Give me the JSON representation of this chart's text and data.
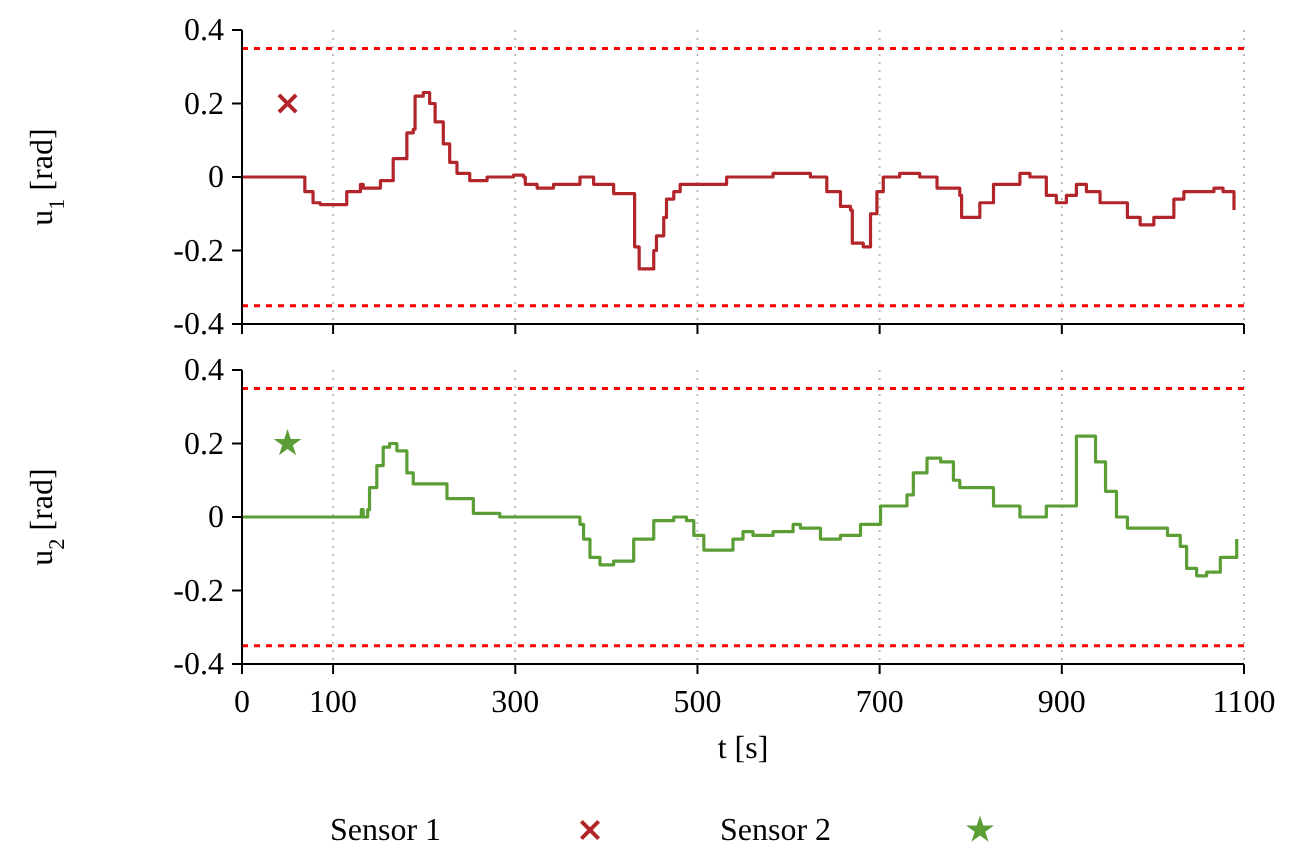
{
  "chart_data": [
    {
      "type": "step",
      "ylabel": "u$_{1}$ [rad]",
      "xlim": [
        0,
        1100
      ],
      "xticks": [
        0,
        100,
        300,
        500,
        700,
        900,
        1100
      ],
      "ylim": [
        -0.4,
        0.4
      ],
      "yticks": [
        -0.4,
        -0.2,
        0,
        0.2,
        0.4
      ],
      "grid": "x",
      "tick_labels": "y",
      "legend": "bottom",
      "ref_lines": [
        {
          "axis": "y",
          "value": 0.35,
          "color": "#ff0000",
          "line_style": "dashed"
        },
        {
          "axis": "y",
          "value": -0.35,
          "color": "#ff0000",
          "line_style": "dashed"
        }
      ],
      "series": [
        {
          "color": "#b2252a",
          "line_style": "solid",
          "x": [
            0,
            69,
            78,
            86,
            115,
            130,
            133,
            144,
            152,
            166,
            181,
            188,
            190,
            199,
            206,
            212,
            221,
            228,
            236,
            250,
            269,
            298,
            309,
            311,
            324,
            342,
            371,
            386,
            408,
            431,
            436,
            448,
            452,
            455,
            463,
            466,
            474,
            481,
            503,
            532,
            561,
            583,
            613,
            624,
            642,
            657,
            668,
            670,
            682,
            690,
            697,
            704,
            722,
            744,
            763,
            788,
            790,
            799,
            810,
            825,
            854,
            865,
            883,
            894,
            905,
            916,
            927,
            942,
            968,
            972,
            986,
            1001,
            1023,
            1034,
            1052,
            1067,
            1077,
            1089
          ],
          "values": [
            0,
            -0.04,
            -0.07,
            -0.075,
            -0.04,
            -0.02,
            -0.03,
            -0.03,
            -0.01,
            0.05,
            0.12,
            0.13,
            0.22,
            0.23,
            0.2,
            0.15,
            0.09,
            0.04,
            0.01,
            -0.01,
            0,
            0.005,
            0,
            -0.02,
            -0.03,
            -0.02,
            0,
            -0.02,
            -0.045,
            -0.19,
            -0.25,
            -0.25,
            -0.2,
            -0.16,
            -0.11,
            -0.06,
            -0.04,
            -0.02,
            -0.02,
            0,
            0,
            0.01,
            0.01,
            0,
            -0.04,
            -0.08,
            -0.09,
            -0.18,
            -0.19,
            -0.1,
            -0.04,
            0,
            0.01,
            0,
            -0.03,
            -0.05,
            -0.11,
            -0.11,
            -0.07,
            -0.02,
            0.01,
            0,
            -0.05,
            -0.07,
            -0.05,
            -0.02,
            -0.04,
            -0.07,
            -0.07,
            -0.11,
            -0.13,
            -0.11,
            -0.06,
            -0.04,
            -0.04,
            -0.03,
            -0.04,
            -0.09
          ]
        },
        {
          "type": "scatter",
          "name": "Sensor 1",
          "color": "#b2252a",
          "marker": "cross",
          "x": [
            50
          ],
          "values": [
            0.2
          ]
        }
      ]
    },
    {
      "type": "step",
      "xlabel": "t [s]",
      "ylabel": "u$_{2}$ [rad]",
      "xlim": [
        0,
        1100
      ],
      "xticks": [
        0,
        100,
        300,
        500,
        700,
        900,
        1100
      ],
      "ylim": [
        -0.4,
        0.4
      ],
      "yticks": [
        -0.4,
        -0.2,
        0,
        0.2,
        0.4
      ],
      "grid": "x",
      "legend": "bottom",
      "ref_lines": [
        {
          "axis": "y",
          "value": 0.35,
          "color": "#ff0000",
          "line_style": "dashed"
        },
        {
          "axis": "y",
          "value": -0.35,
          "color": "#ff0000",
          "line_style": "dashed"
        }
      ],
      "series": [
        {
          "color": "#5c9e36",
          "line_style": "solid",
          "x": [
            0,
            67,
            131,
            133,
            138,
            140,
            148,
            155,
            162,
            170,
            181,
            188,
            195,
            225,
            254,
            283,
            320,
            371,
            375,
            382,
            393,
            408,
            430,
            452,
            474,
            488,
            496,
            507,
            518,
            539,
            550,
            561,
            583,
            605,
            613,
            635,
            657,
            679,
            701,
            730,
            737,
            752,
            767,
            781,
            788,
            803,
            825,
            854,
            883,
            909,
            916,
            927,
            937,
            948,
            960,
            972,
            986,
            1016,
            1030,
            1037,
            1048,
            1059,
            1074,
            1092
          ],
          "values": [
            0,
            0,
            0.02,
            0,
            0.02,
            0.08,
            0.14,
            0.19,
            0.2,
            0.18,
            0.12,
            0.09,
            0.09,
            0.05,
            0.01,
            0,
            0,
            -0.02,
            -0.06,
            -0.11,
            -0.13,
            -0.12,
            -0.06,
            -0.01,
            0,
            -0.01,
            -0.05,
            -0.09,
            -0.09,
            -0.06,
            -0.04,
            -0.05,
            -0.04,
            -0.02,
            -0.03,
            -0.06,
            -0.05,
            -0.02,
            0.03,
            0.06,
            0.12,
            0.16,
            0.15,
            0.1,
            0.08,
            0.08,
            0.03,
            0,
            0.03,
            0.03,
            0.22,
            0.22,
            0.15,
            0.07,
            0,
            -0.03,
            -0.03,
            -0.05,
            -0.08,
            -0.14,
            -0.16,
            -0.15,
            -0.11,
            -0.06
          ]
        },
        {
          "type": "scatter",
          "name": "Sensor 2",
          "color": "#5c9e36",
          "marker": "star",
          "x": [
            50
          ],
          "values": [
            0.2
          ]
        }
      ]
    }
  ]
}
